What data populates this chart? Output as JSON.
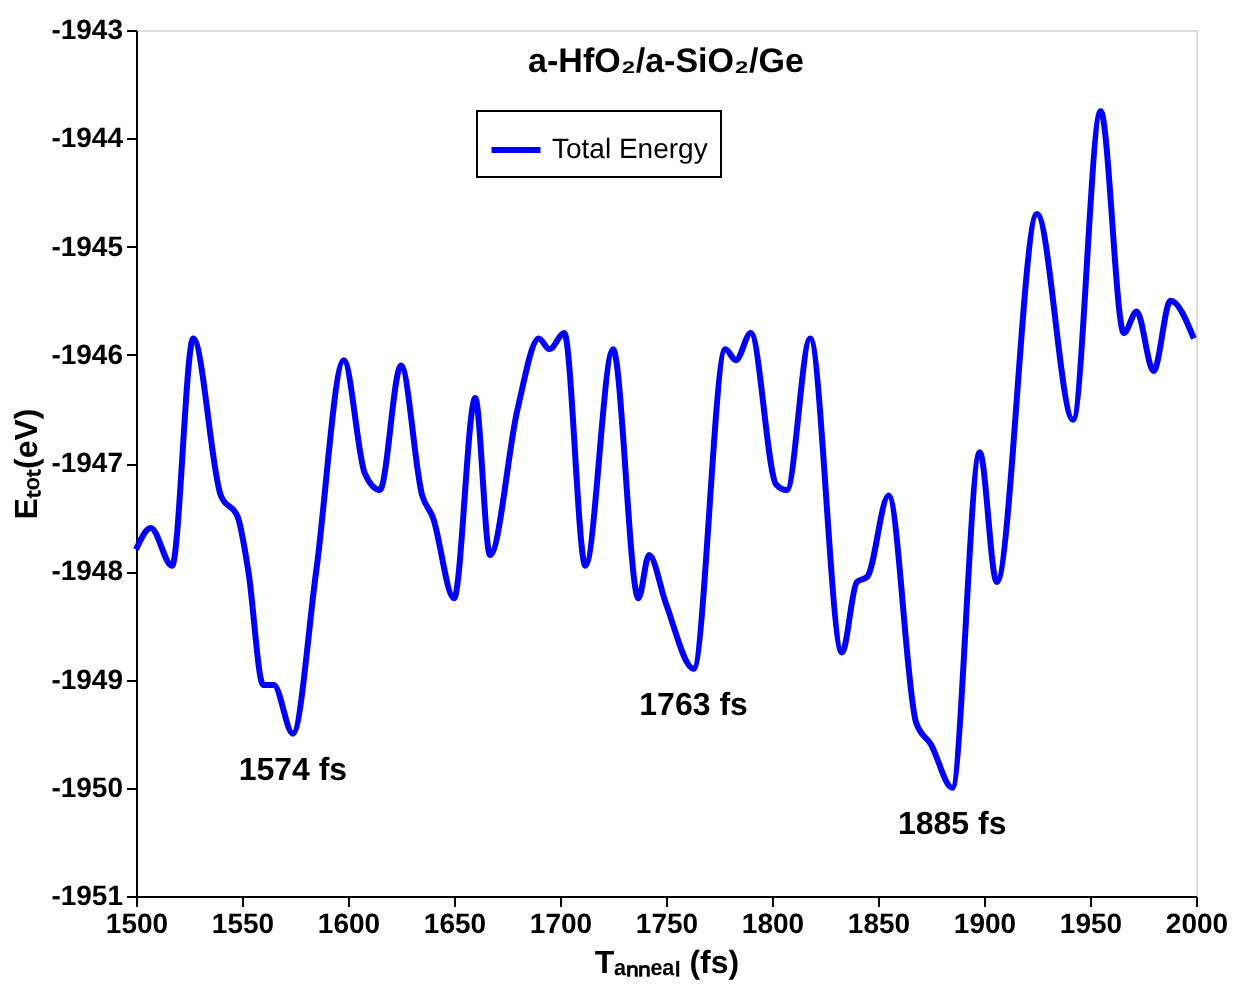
{
  "chart_data": {
    "type": "line",
    "title": "a-HfO₂/a-SiO₂/Ge",
    "xlabel": "Tₐₙₙₑₐₗ (fs)",
    "ylabel": "Eₜₒₜ(eV)",
    "xlim": [
      1500,
      2000
    ],
    "xticks": [
      1500,
      1550,
      1600,
      1650,
      1700,
      1750,
      1800,
      1850,
      1900,
      1950,
      2000
    ],
    "ylim": [
      -1951,
      -1943
    ],
    "yticks": [
      -1951,
      -1950,
      -1949,
      -1948,
      -1947,
      -1946,
      -1945,
      -1944,
      -1943
    ],
    "grid": false,
    "legend": "top",
    "marker": "none",
    "line_style": "solid",
    "series": [
      {
        "name": "Total Energy",
        "color": "#0000ff",
        "x": [
          1500,
          1507,
          1517,
          1527,
          1540,
          1548,
          1553,
          1560,
          1565,
          1574,
          1585,
          1598,
          1608,
          1615,
          1625,
          1635,
          1640,
          1650,
          1660,
          1667,
          1680,
          1690,
          1695,
          1702,
          1712,
          1725,
          1737,
          1742,
          1750,
          1763,
          1778,
          1783,
          1790,
          1802,
          1807,
          1818,
          1833,
          1840,
          1845,
          1855,
          1868,
          1875,
          1885,
          1898,
          1906,
          1925,
          1942,
          1955,
          1966,
          1972,
          1980,
          1988,
          1999
        ],
        "values": [
          -1947.8,
          -1947.6,
          -1947.95,
          -1945.85,
          -1947.3,
          -1947.5,
          -1948.0,
          -1949.05,
          -1949.05,
          -1949.5,
          -1948.0,
          -1946.05,
          -1947.1,
          -1947.25,
          -1946.1,
          -1947.3,
          -1947.5,
          -1948.25,
          -1946.4,
          -1947.85,
          -1946.5,
          -1945.85,
          -1945.95,
          -1945.8,
          -1947.95,
          -1945.95,
          -1948.25,
          -1947.85,
          -1948.3,
          -1948.9,
          -1945.95,
          -1946.05,
          -1945.8,
          -1947.2,
          -1947.25,
          -1945.85,
          -1948.75,
          -1948.1,
          -1948.05,
          -1947.3,
          -1949.4,
          -1949.6,
          -1950.0,
          -1946.9,
          -1948.1,
          -1944.7,
          -1946.6,
          -1943.75,
          -1945.8,
          -1945.6,
          -1946.15,
          -1945.5,
          -1945.85
        ]
      }
    ],
    "annotations": [
      {
        "text": "1574 fs",
        "x": 1574,
        "y": -1949.5
      },
      {
        "text": "1763 fs",
        "x": 1763,
        "y": -1948.9
      },
      {
        "text": "1885 fs",
        "x": 1885,
        "y": -1950.0
      }
    ]
  }
}
